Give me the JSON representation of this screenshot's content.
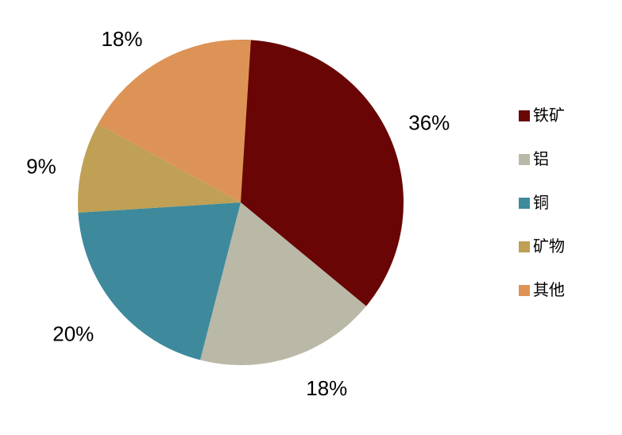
{
  "chart_data": {
    "type": "pie",
    "title": "",
    "start_angle_deg": 0,
    "direction": "clockwise",
    "legend_position": "right",
    "labels_position": "outside",
    "background_color": "#ffffff",
    "label_color": "#000000",
    "slices": [
      {
        "label": "铁矿",
        "value": 36,
        "display": "36%",
        "color": "#690505"
      },
      {
        "label": "铝",
        "value": 18,
        "display": "18%",
        "color": "#bab8a7"
      },
      {
        "label": "铜",
        "value": 20,
        "display": "20%",
        "color": "#3e8a9c"
      },
      {
        "label": "矿物",
        "value": 9,
        "display": "9%",
        "color": "#bfa054"
      },
      {
        "label": "其他",
        "value": 18,
        "display": "18%",
        "color": "#dd9356"
      }
    ]
  }
}
